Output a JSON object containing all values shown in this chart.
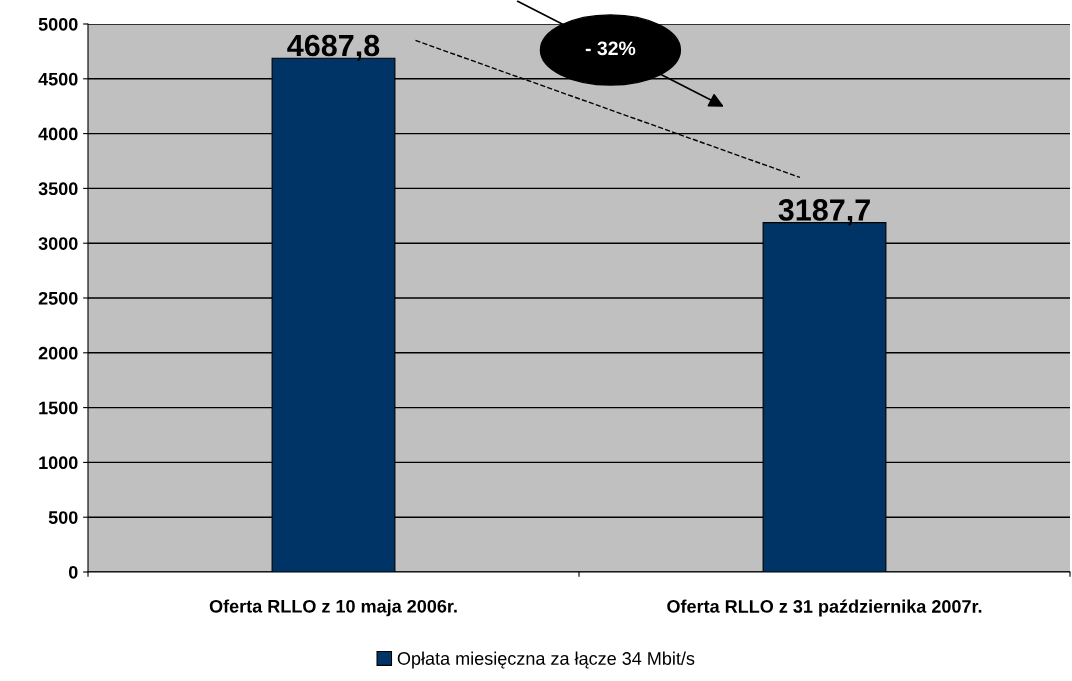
{
  "chart_data": {
    "type": "bar",
    "categories": [
      "Oferta RLLO z 10 maja 2006r.",
      "Oferta RLLO z 31 października 2007r."
    ],
    "series": [
      {
        "name": "Opłata miesięczna za łącze 34 Mbit/s",
        "color": "#003366",
        "values": [
          4687.8,
          3187.7
        ],
        "value_labels": [
          "4687,8",
          "3187,7"
        ]
      }
    ],
    "ylim": [
      0,
      5000
    ],
    "yticks": [
      0,
      500,
      1000,
      1500,
      2000,
      2500,
      3000,
      3500,
      4000,
      4500,
      5000
    ],
    "grid": "y",
    "legend": "bottom",
    "annotations": [
      "- 32%"
    ]
  }
}
